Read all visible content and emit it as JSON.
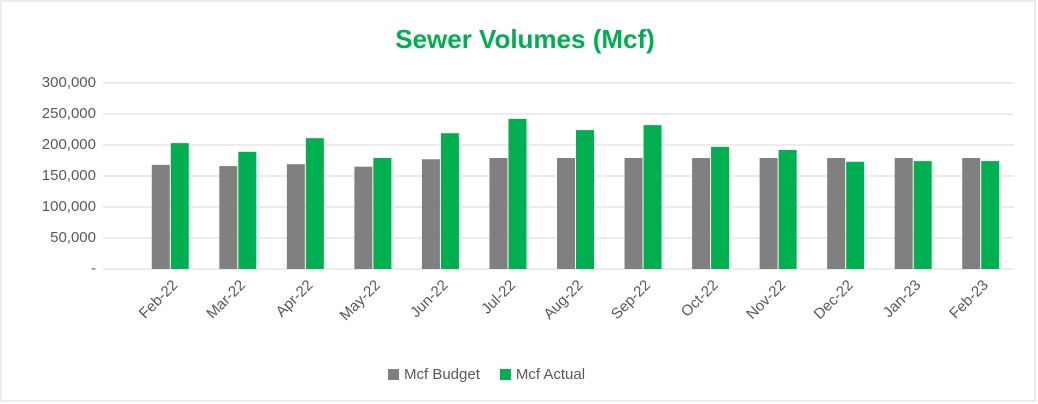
{
  "chart_data": {
    "type": "bar",
    "title": "Sewer Volumes (Mcf)",
    "categories": [
      "Feb-22",
      "Mar-22",
      "Apr-22",
      "May-22",
      "Jun-22",
      "Jul-22",
      "Aug-22",
      "Sep-22",
      "Oct-22",
      "Nov-22",
      "Dec-22",
      "Jan-23",
      "Feb-23"
    ],
    "series": [
      {
        "name": "Mcf Budget",
        "color": "#808080",
        "values": [
          168000,
          166000,
          169000,
          165000,
          177000,
          179000,
          179000,
          179000,
          179000,
          179000,
          179000,
          179000,
          179000
        ]
      },
      {
        "name": "Mcf Actual",
        "color": "#00b050",
        "values": [
          203000,
          189000,
          211000,
          179000,
          219000,
          242000,
          224000,
          232000,
          197000,
          192000,
          173000,
          174000,
          174000
        ]
      }
    ],
    "ylim": [
      0,
      300000
    ],
    "yticks": [
      {
        "value": 0,
        "label": "-"
      },
      {
        "value": 50000,
        "label": "50,000"
      },
      {
        "value": 100000,
        "label": "100,000"
      },
      {
        "value": 150000,
        "label": "150,000"
      },
      {
        "value": 200000,
        "label": "200,000"
      },
      {
        "value": 250000,
        "label": "250,000"
      },
      {
        "value": 300000,
        "label": "300,000"
      }
    ],
    "grid": true,
    "legend": "bottom",
    "title_color": "#00b050"
  }
}
